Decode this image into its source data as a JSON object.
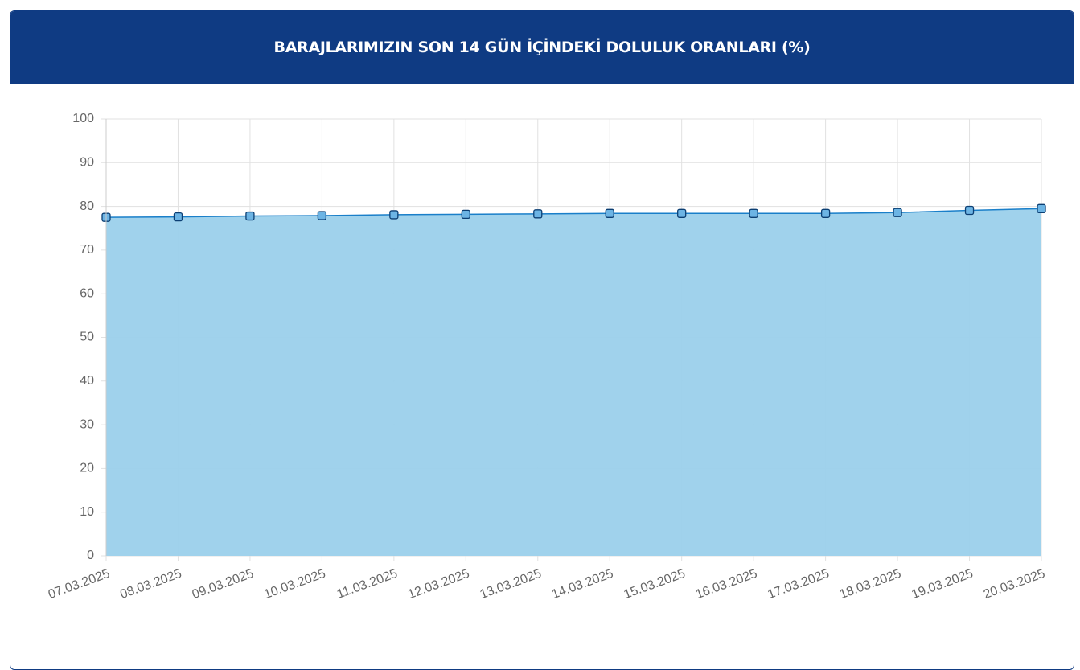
{
  "chart_data": {
    "type": "area",
    "title": "BARAJLARIMIZIN SON 14 GÜN İÇİNDEKİ DOLULUK ORANLARI (%)",
    "categories": [
      "07.03.2025",
      "08.03.2025",
      "09.03.2025",
      "10.03.2025",
      "11.03.2025",
      "12.03.2025",
      "13.03.2025",
      "14.03.2025",
      "15.03.2025",
      "16.03.2025",
      "17.03.2025",
      "18.03.2025",
      "19.03.2025",
      "20.03.2025"
    ],
    "values": [
      77.5,
      77.6,
      77.8,
      77.9,
      78.1,
      78.2,
      78.3,
      78.4,
      78.4,
      78.4,
      78.4,
      78.6,
      79.1,
      79.5
    ],
    "color": "#1a7fc9",
    "fill_color": "#9bd0eb",
    "ylim": [
      0,
      100
    ],
    "yticks": [
      0,
      10,
      20,
      30,
      40,
      50,
      60,
      70,
      80,
      90,
      100
    ],
    "grid": true
  }
}
